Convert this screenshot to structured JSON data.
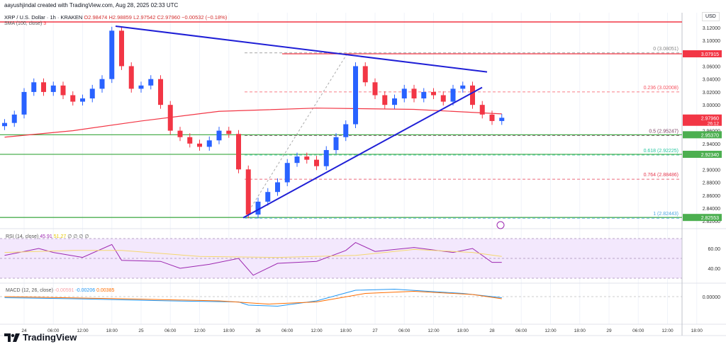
{
  "header": {
    "credit": "aayushjindal created with TradingView.com, Aug 28, 2025 02:33 UTC"
  },
  "legend": {
    "symbol": "XRP / U.S. Dollar · 1h · KRAKEN",
    "open": "O2.98474",
    "high": "H2.98859",
    "low": "L2.97542",
    "close": "C2.97960",
    "change": "−0.00532 (−0.18%)",
    "sma": "SMA (100, close)",
    "sma_val": "3"
  },
  "price_axis": {
    "currency": "USD",
    "ticks": [
      "3.12000",
      "3.10000",
      "3.06000",
      "3.04000",
      "3.02000",
      "3.00000",
      "2.96000",
      "2.94000",
      "2.90000",
      "2.88000",
      "2.86000",
      "2.84000",
      "2.82000"
    ],
    "badges": [
      {
        "price": 3.07915,
        "label": "3.07915",
        "color": "#f23645"
      },
      {
        "price": 2.9796,
        "label": "2.97960",
        "sub": "26:12",
        "color": "#f23645"
      },
      {
        "price": 2.9537,
        "label": "2.95370",
        "color": "#4caf50"
      },
      {
        "price": 2.9234,
        "label": "2.92340",
        "color": "#4caf50"
      },
      {
        "price": 2.82553,
        "label": "2.82553",
        "color": "#4caf50"
      }
    ]
  },
  "fib": [
    {
      "level": "0 (3.08051)",
      "price": 3.08051,
      "color": "#888888"
    },
    {
      "level": "0.236 (3.02008)",
      "price": 3.02008,
      "color": "#f7525f"
    },
    {
      "level": "0.5 (2.95247)",
      "price": 2.95247,
      "color": "#7b3f61"
    },
    {
      "level": "0.618 (2.92225)",
      "price": 2.92225,
      "color": "#26c6a0"
    },
    {
      "level": "0.764 (2.88486)",
      "price": 2.88486,
      "color": "#e53950"
    },
    {
      "level": "1 (2.82443)",
      "price": 2.82443,
      "color": "#4fa8e0"
    }
  ],
  "time_axis": [
    "24",
    "06:00",
    "12:00",
    "18:00",
    "25",
    "06:00",
    "12:00",
    "18:00",
    "26",
    "06:00",
    "12:00",
    "18:00",
    "27",
    "06:00",
    "12:00",
    "18:00",
    "28",
    "06:00",
    "12:00",
    "18:00",
    "29",
    "06:00",
    "12:00",
    "18:00"
  ],
  "rsi": {
    "label": "RSI (14, close)",
    "value": "45.91",
    "ma": "51.27",
    "extra": "∅ ∅ ∅ ∅",
    "ticks": [
      "60.00",
      "40.00"
    ]
  },
  "macd": {
    "label": "MACD (12, 26, close)",
    "hist": "-0.00591",
    "macd": "-0.00206",
    "signal": "0.00385",
    "tick": "0.00000"
  },
  "brand": "TradingView",
  "colors": {
    "up": "#2962ff",
    "down": "#f23645",
    "sma": "#f23645",
    "trend": "#1f1fd6"
  },
  "chart_data": {
    "type": "candlestick",
    "hours_from_aug24": [
      -4,
      -2,
      0,
      2,
      4,
      6,
      8,
      10,
      12,
      14,
      16,
      18,
      20,
      22,
      24,
      26,
      28,
      30,
      32,
      34,
      36,
      38,
      40,
      42,
      44,
      46,
      48,
      50,
      52,
      54,
      56,
      58,
      60,
      62,
      64,
      66,
      68,
      70,
      72,
      74,
      76,
      78,
      80,
      82,
      84,
      86,
      88,
      90,
      92,
      94,
      96,
      98
    ],
    "close": [
      2.972,
      2.985,
      3.02,
      3.035,
      3.02,
      3.03,
      3.015,
      3.005,
      3.01,
      3.025,
      3.04,
      3.115,
      3.06,
      3.025,
      3.03,
      3.04,
      3.0,
      2.96,
      2.95,
      2.94,
      2.935,
      2.945,
      2.96,
      2.955,
      2.9,
      2.83,
      2.85,
      2.865,
      2.88,
      2.91,
      2.92,
      2.915,
      2.905,
      2.93,
      2.95,
      2.97,
      3.06,
      3.035,
      3.015,
      3.0,
      3.01,
      3.025,
      3.01,
      3.02,
      3.015,
      3.005,
      3.025,
      3.03,
      3.0,
      2.985,
      2.975,
      2.98
    ],
    "sma100": [
      [
        -4,
        2.95
      ],
      [
        10,
        2.96
      ],
      [
        24,
        2.975
      ],
      [
        40,
        2.99
      ],
      [
        60,
        2.995
      ],
      [
        80,
        2.993
      ],
      [
        98,
        2.986
      ]
    ],
    "rsi": [
      [
        -4,
        53
      ],
      [
        0,
        57
      ],
      [
        3,
        60
      ],
      [
        6,
        56
      ],
      [
        12,
        51
      ],
      [
        18,
        64
      ],
      [
        20,
        48
      ],
      [
        28,
        47
      ],
      [
        32,
        40
      ],
      [
        38,
        44
      ],
      [
        44,
        50
      ],
      [
        47,
        33
      ],
      [
        52,
        45
      ],
      [
        60,
        47
      ],
      [
        66,
        58
      ],
      [
        68,
        66
      ],
      [
        72,
        57
      ],
      [
        80,
        61
      ],
      [
        88,
        56
      ],
      [
        92,
        60
      ],
      [
        96,
        46
      ],
      [
        98,
        46
      ]
    ],
    "ylim": [
      2.82,
      3.125
    ]
  }
}
